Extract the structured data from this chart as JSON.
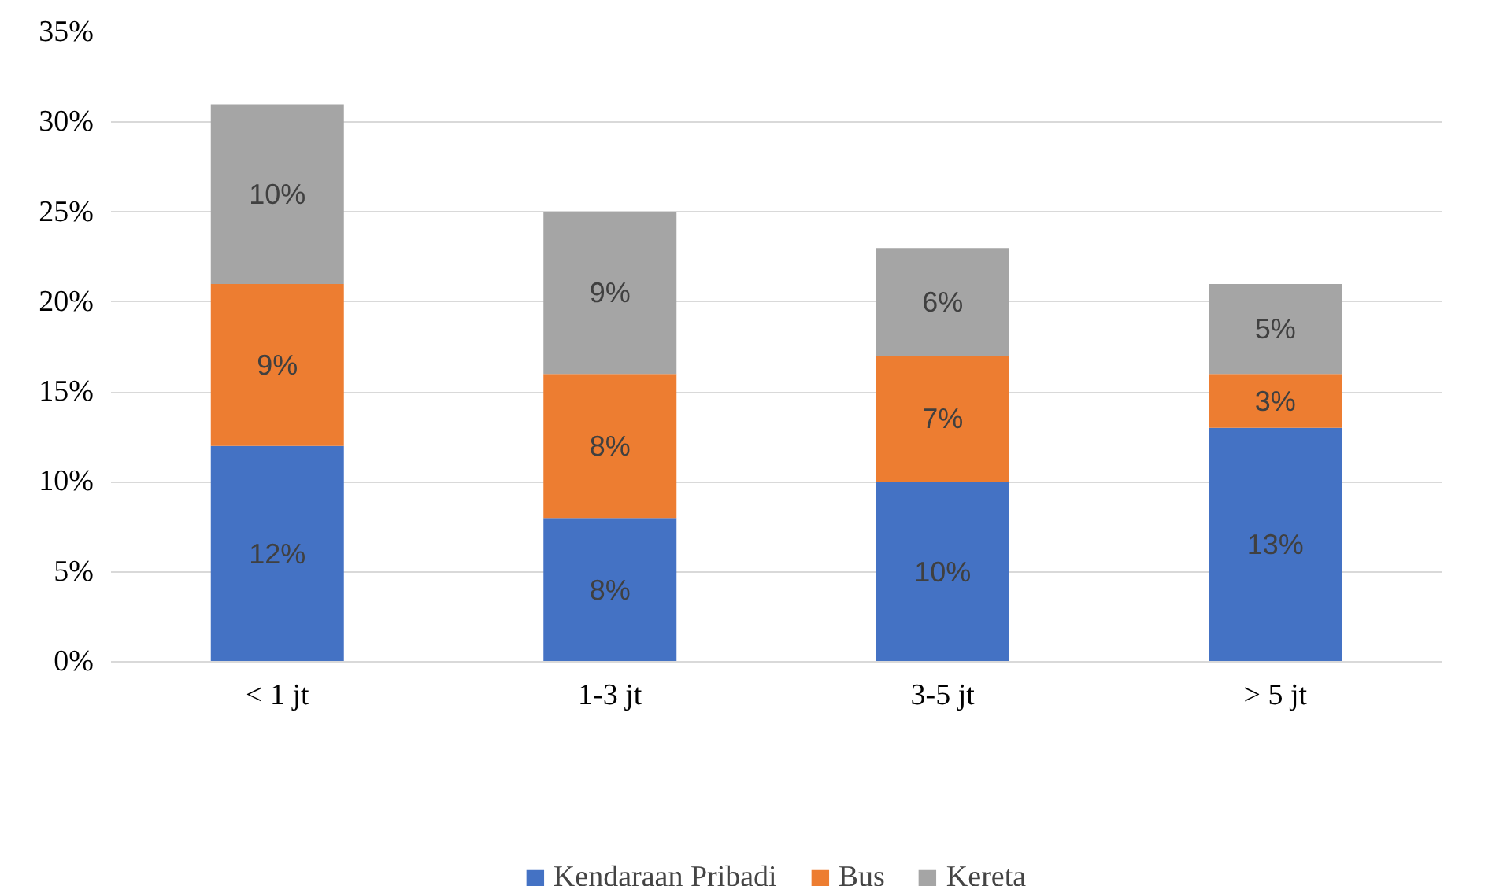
{
  "chart_data": {
    "type": "bar",
    "stacked": true,
    "categories": [
      "< 1 jt",
      "1-3 jt",
      "3-5 jt",
      "> 5 jt"
    ],
    "series": [
      {
        "name": "Kendaraan Pribadi",
        "color": "#4472c4",
        "values": [
          12,
          8,
          10,
          13
        ],
        "value_labels": [
          "12%",
          "8%",
          "10%",
          "13%"
        ]
      },
      {
        "name": "Bus",
        "color": "#ed7d31",
        "values": [
          9,
          8,
          7,
          3
        ],
        "value_labels": [
          "9%",
          "8%",
          "7%",
          "3%"
        ]
      },
      {
        "name": "Kereta",
        "color": "#a5a5a5",
        "values": [
          10,
          9,
          6,
          5
        ],
        "value_labels": [
          "10%",
          "9%",
          "6%",
          "5%"
        ]
      }
    ],
    "ylim": [
      0,
      35
    ],
    "yticks": [
      {
        "value": 0,
        "label": "0%"
      },
      {
        "value": 5,
        "label": "5%"
      },
      {
        "value": 10,
        "label": "10%"
      },
      {
        "value": 15,
        "label": "15%"
      },
      {
        "value": 20,
        "label": "20%"
      },
      {
        "value": 25,
        "label": "25%"
      },
      {
        "value": 30,
        "label": "30%"
      },
      {
        "value": 35,
        "label": "35%"
      }
    ],
    "grid": "y",
    "legend": "bottom"
  }
}
